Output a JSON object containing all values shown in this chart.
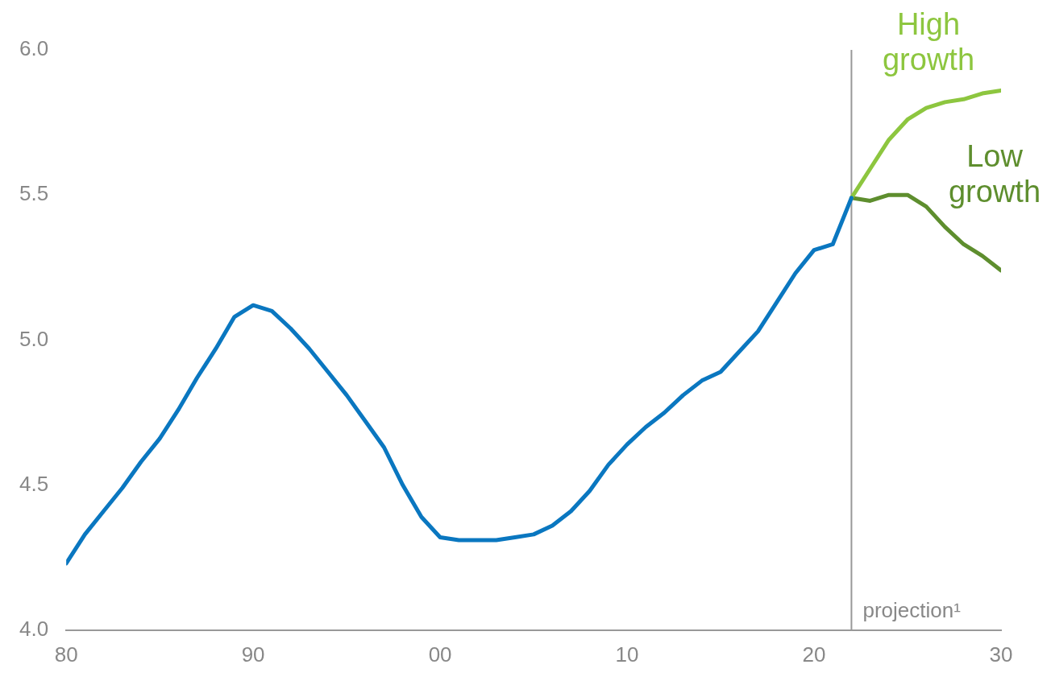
{
  "chart_data": {
    "type": "line",
    "marker": "none",
    "xlim": [
      1980,
      2030
    ],
    "xticks": [
      {
        "value": 1980,
        "label": "80"
      },
      {
        "value": 1990,
        "label": "90"
      },
      {
        "value": 2000,
        "label": "00"
      },
      {
        "value": 2010,
        "label": "10"
      },
      {
        "value": 2020,
        "label": "20"
      },
      {
        "value": 2030,
        "label": "30"
      }
    ],
    "ylim": [
      4.0,
      6.0
    ],
    "yticks": [
      {
        "value": 4.0,
        "label": "4.0"
      },
      {
        "value": 4.5,
        "label": "4.5"
      },
      {
        "value": 5.0,
        "label": "5.0"
      },
      {
        "value": 5.5,
        "label": "5.5"
      },
      {
        "value": 6.0,
        "label": "6.0"
      }
    ],
    "ref_lines": [
      {
        "axis": "x",
        "value": 2022,
        "label": "projection¹",
        "color": "#999999"
      }
    ],
    "series": [
      {
        "color": "#0a77c0",
        "x": [
          1980,
          1981,
          1982,
          1983,
          1984,
          1985,
          1986,
          1987,
          1988,
          1989,
          1990,
          1991,
          1992,
          1993,
          1994,
          1995,
          1996,
          1997,
          1998,
          1999,
          2000,
          2001,
          2002,
          2003,
          2004,
          2005,
          2006,
          2007,
          2008,
          2009,
          2010,
          2011,
          2012,
          2013,
          2014,
          2015,
          2016,
          2017,
          2018,
          2019,
          2020,
          2021,
          2022
        ],
        "values": [
          4.23,
          4.33,
          4.41,
          4.49,
          4.58,
          4.66,
          4.76,
          4.87,
          4.97,
          5.08,
          5.12,
          5.1,
          5.04,
          4.97,
          4.89,
          4.81,
          4.72,
          4.63,
          4.5,
          4.39,
          4.32,
          4.31,
          4.31,
          4.31,
          4.32,
          4.33,
          4.36,
          4.41,
          4.48,
          4.57,
          4.64,
          4.7,
          4.75,
          4.81,
          4.86,
          4.89,
          4.96,
          5.03,
          5.13,
          5.23,
          5.31,
          5.33,
          5.49
        ]
      },
      {
        "name": "High growth",
        "color": "#8dc63f",
        "x": [
          2022,
          2023,
          2024,
          2025,
          2026,
          2027,
          2028,
          2029,
          2030
        ],
        "values": [
          5.49,
          5.59,
          5.69,
          5.76,
          5.8,
          5.82,
          5.83,
          5.85,
          5.86
        ]
      },
      {
        "name": "Low growth",
        "color": "#5e8e2e",
        "x": [
          2022,
          2023,
          2024,
          2025,
          2026,
          2027,
          2028,
          2029,
          2030
        ],
        "values": [
          5.49,
          5.48,
          5.5,
          5.5,
          5.46,
          5.39,
          5.33,
          5.29,
          5.24
        ]
      }
    ]
  }
}
